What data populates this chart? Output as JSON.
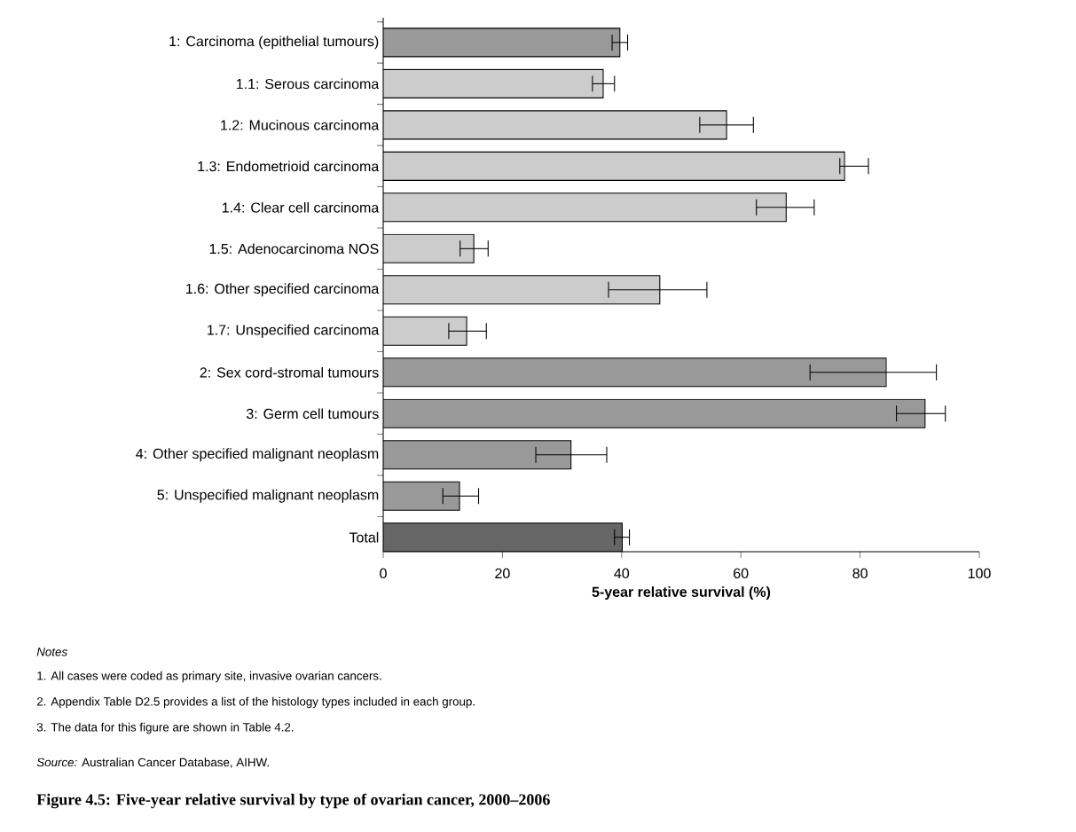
{
  "chart_data": {
    "type": "bar",
    "orientation": "horizontal",
    "title": "Figure 4.5: Five-year relative survival by type of ovarian cancer, 2000–2006",
    "xlabel": "5-year relative survival (%)",
    "categories": [
      "1: Carcinoma (epithelial tumours)",
      "1.1: Serous carcinoma",
      "1.2: Mucinous carcinoma",
      "1.3: Endometrioid carcinoma",
      "1.4: Clear cell carcinoma",
      "1.5: Adenocarcinoma NOS",
      "1.6: Other specified carcinoma",
      "1.7: Unspecified carcinoma",
      "2: Sex cord-stromal tumours",
      "3: Germ cell tumours",
      "4: Other specified malignant neoplasm",
      "5: Unspecified malignant neoplasm",
      "Total"
    ],
    "values": [
      39.7,
      36.9,
      57.6,
      77.4,
      67.6,
      15.2,
      46.4,
      14.0,
      84.4,
      90.9,
      31.5,
      12.8,
      40.1
    ],
    "errors": [
      [
        38.4,
        41.0
      ],
      [
        35.1,
        38.8
      ],
      [
        53.1,
        62.1
      ],
      [
        76.6,
        81.4
      ],
      [
        62.6,
        72.3
      ],
      [
        12.9,
        17.6
      ],
      [
        37.8,
        54.3
      ],
      [
        11.0,
        17.3
      ],
      [
        71.6,
        92.8
      ],
      [
        86.1,
        94.3
      ],
      [
        25.6,
        37.5
      ],
      [
        10.0,
        16.0
      ],
      [
        38.8,
        41.3
      ]
    ],
    "colors": [
      "#999999",
      "#cccccc",
      "#cccccc",
      "#cccccc",
      "#cccccc",
      "#cccccc",
      "#cccccc",
      "#cccccc",
      "#999999",
      "#999999",
      "#999999",
      "#999999",
      "#666666"
    ],
    "xlim": [
      0,
      100
    ],
    "xticks": [
      0,
      20,
      40,
      60,
      80,
      100
    ],
    "annotations": [
      "Notes",
      "1. All cases were coded as primary site, invasive ovarian cancers.",
      "2. Appendix Table D2.5 provides a list of the histology types included in each group.",
      "3. The data for this figure are shown in Table 4.2.",
      "*Source:* Australian Cancer Database, AIHW."
    ]
  }
}
